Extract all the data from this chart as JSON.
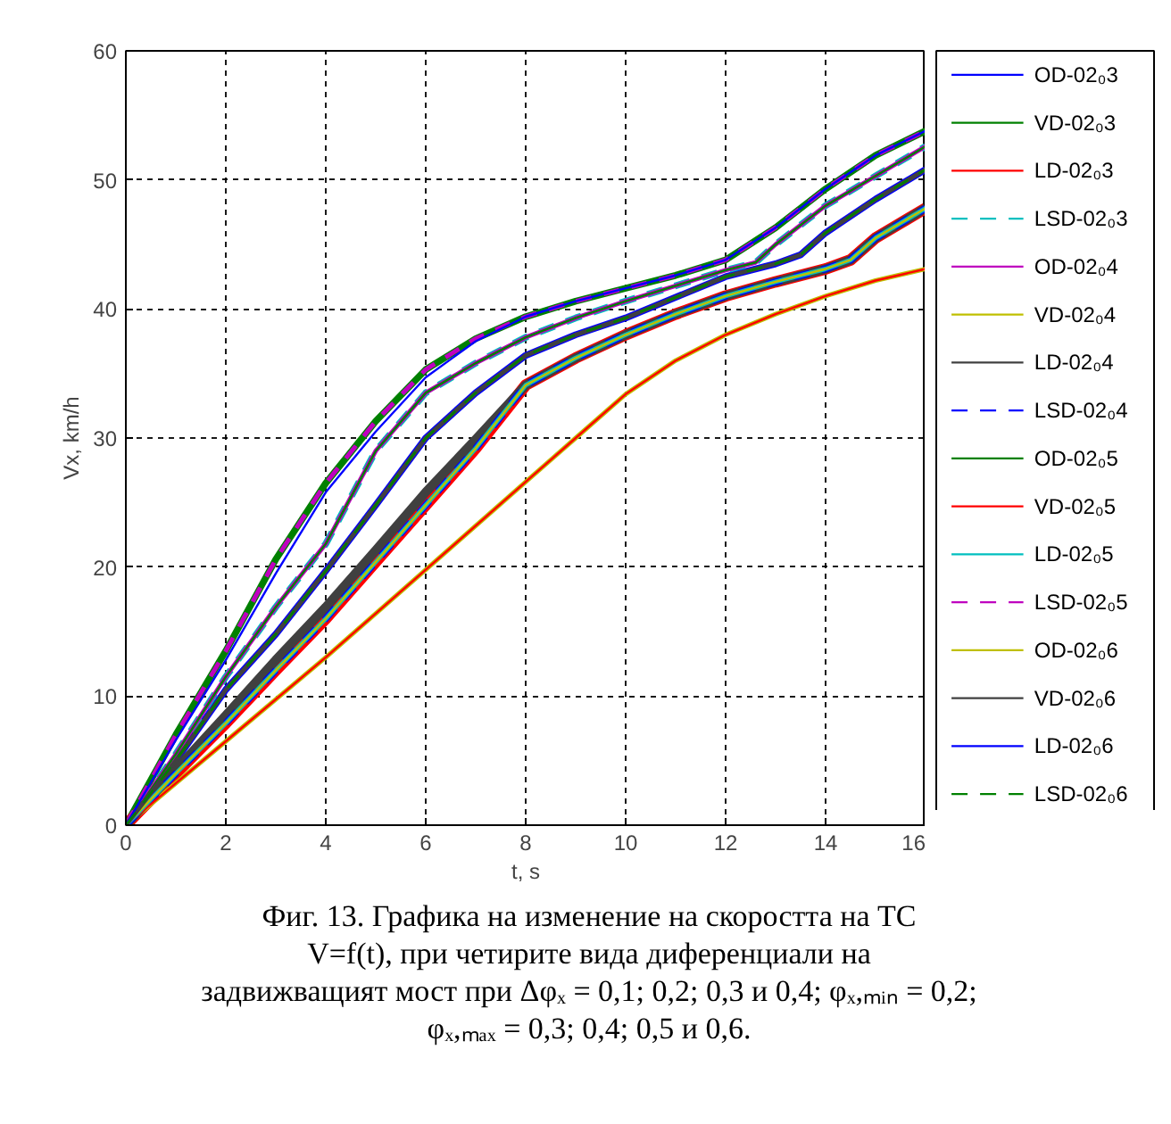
{
  "chart_data": {
    "type": "line",
    "title": "Фиг. 13. Графика на изменение на скоростта на ТС\nV=f(t), при четирите вида диференциали на\nзадвижващият мост при Δφₓ = 0,1; 0,2; 0,3 и 0,4; φₓ,ₘᵢₙ = 0,2;\nφₓ,ₘₐₓ = 0,3; 0,4; 0,5 и 0,6.",
    "xlabel": "t, s",
    "ylabel": "Vx, km/h",
    "xlim": [
      0,
      16
    ],
    "ylim": [
      0,
      60
    ],
    "xticks": [
      0,
      2,
      4,
      6,
      8,
      10,
      12,
      14,
      16
    ],
    "yticks": [
      0,
      10,
      20,
      30,
      40,
      50,
      60
    ],
    "grid": true,
    "legend": "right",
    "series": [
      {
        "name": "OD-02₀3",
        "color": "#0000ff",
        "line_style": "solid",
        "x": [
          0,
          1,
          2,
          3,
          4,
          5,
          6,
          7,
          8,
          9,
          10,
          11,
          12,
          13,
          13.5,
          14,
          15,
          16
        ],
        "values": [
          0,
          5,
          10.5,
          14.8,
          19.7,
          24.8,
          30,
          33.5,
          36.4,
          38,
          39.3,
          40.9,
          42.5,
          43.5,
          44.2,
          45.9,
          48.5,
          50.8
        ]
      },
      {
        "name": "VD-02₀3",
        "color": "#008000",
        "line_style": "solid",
        "x": [
          0,
          1,
          2,
          3,
          4,
          5,
          6,
          7,
          8,
          9,
          10,
          11,
          12,
          13,
          14,
          15,
          16
        ],
        "values": [
          0,
          7,
          13.5,
          20.6,
          26.5,
          31.3,
          35.3,
          37.7,
          39.4,
          40.6,
          41.6,
          42.6,
          43.8,
          46.3,
          49.3,
          51.9,
          53.8
        ]
      },
      {
        "name": "LD-02₀3",
        "color": "#ff0000",
        "line_style": "solid",
        "x": [
          0,
          1,
          2,
          3,
          4,
          5,
          6,
          7,
          8,
          9,
          10,
          11,
          12,
          13,
          14,
          14.5,
          15,
          16
        ],
        "values": [
          0,
          4,
          7.9,
          12,
          16,
          20.4,
          24.8,
          29.2,
          34.1,
          36.2,
          38,
          39.6,
          41,
          42.1,
          43.1,
          43.8,
          45.5,
          47.8
        ]
      },
      {
        "name": "LSD-02₀3",
        "color": "#00bfbf",
        "line_style": "dashed",
        "x": [
          0,
          1,
          2,
          3,
          4,
          5,
          6,
          7,
          8,
          9,
          10,
          11,
          12,
          12.6,
          13,
          14,
          15,
          16
        ],
        "values": [
          0,
          5.5,
          11.5,
          16.9,
          21.8,
          29,
          33.5,
          35.8,
          37.8,
          39.3,
          40.6,
          41.8,
          43,
          43.6,
          45,
          48,
          50.3,
          52.6
        ]
      },
      {
        "name": "OD-02₀4",
        "color": "#bf00bf",
        "line_style": "solid",
        "x": [
          0,
          1,
          2,
          3,
          4,
          5,
          6,
          7,
          8,
          9,
          10,
          11,
          12,
          12.6,
          13,
          14,
          15,
          16
        ],
        "values": [
          0,
          5.5,
          11.5,
          16.9,
          21.8,
          29,
          33.5,
          35.8,
          37.8,
          39.3,
          40.6,
          41.8,
          43,
          43.6,
          45,
          48,
          50.3,
          52.6
        ]
      },
      {
        "name": "VD-02₀4",
        "color": "#bfbf00",
        "line_style": "solid",
        "x": [
          0,
          2,
          4,
          6,
          8,
          9,
          10,
          11,
          12,
          13,
          14,
          15,
          16
        ],
        "values": [
          0,
          6.5,
          13,
          19.8,
          26.6,
          30,
          33.4,
          36,
          38,
          39.6,
          41,
          42.2,
          43.1
        ]
      },
      {
        "name": "LD-02₀4",
        "color": "#404040",
        "line_style": "solid",
        "x": [
          0,
          1,
          2,
          3,
          4,
          5,
          6,
          7,
          8,
          9,
          10,
          11,
          12,
          13,
          14,
          14.5,
          15,
          16
        ],
        "values": [
          0,
          4.3,
          8.5,
          12.8,
          16.9,
          21.3,
          25.8,
          29.9,
          34.1,
          36.2,
          38,
          39.6,
          41,
          42.1,
          43.1,
          43.8,
          45.5,
          47.8
        ]
      },
      {
        "name": "LSD-02₀4",
        "color": "#0000ff",
        "line_style": "dashed",
        "x": [
          0,
          1,
          2,
          3,
          4,
          5,
          6,
          7,
          8,
          9,
          10,
          11,
          12,
          13,
          14,
          14.5,
          15,
          16
        ],
        "values": [
          0,
          4,
          7.9,
          12,
          16,
          20.4,
          24.8,
          29.2,
          34.1,
          36.2,
          38,
          39.6,
          41,
          42.1,
          43.1,
          43.8,
          45.5,
          47.8
        ]
      },
      {
        "name": "OD-02₀5",
        "color": "#008000",
        "line_style": "solid",
        "x": [
          0,
          1,
          2,
          3,
          4,
          5,
          6,
          7,
          8,
          9,
          10,
          11,
          12,
          12.6,
          13,
          14,
          15,
          16
        ],
        "values": [
          0,
          5.5,
          11.5,
          16.9,
          21.8,
          29,
          33.5,
          35.8,
          37.8,
          39.3,
          40.6,
          41.8,
          43,
          43.6,
          45,
          48,
          50.3,
          52.6
        ]
      },
      {
        "name": "VD-02₀5",
        "color": "#ff0000",
        "line_style": "solid",
        "x": [
          0,
          2,
          4,
          6,
          8,
          9,
          10,
          11,
          12,
          13,
          14,
          15,
          16
        ],
        "values": [
          0,
          6.5,
          13,
          19.8,
          26.6,
          30,
          33.4,
          36,
          38,
          39.6,
          41,
          42.2,
          43.1
        ]
      },
      {
        "name": "LD-02₀5",
        "color": "#00bfbf",
        "line_style": "solid",
        "x": [
          0,
          1,
          2,
          3,
          4,
          5,
          6,
          7,
          8,
          9,
          10,
          11,
          12,
          13,
          14,
          14.5,
          15,
          16
        ],
        "values": [
          0,
          4,
          7.9,
          12,
          16,
          20.4,
          24.8,
          29.2,
          34.1,
          36.2,
          38,
          39.6,
          41,
          42.1,
          43.1,
          43.8,
          45.5,
          47.8
        ]
      },
      {
        "name": "LSD-02₀5",
        "color": "#bf00bf",
        "line_style": "dashed",
        "x": [
          0,
          1,
          2,
          3,
          4,
          5,
          6,
          7,
          8,
          9,
          10,
          11,
          12,
          13,
          14,
          15,
          16
        ],
        "values": [
          0,
          7,
          13.5,
          20.6,
          26.5,
          31.3,
          35.3,
          37.7,
          39.4,
          40.6,
          41.6,
          42.6,
          43.8,
          46.3,
          49.3,
          51.9,
          53.8
        ]
      },
      {
        "name": "OD-02₀6",
        "color": "#bfbf00",
        "line_style": "solid",
        "x": [
          0,
          1,
          2,
          3,
          4,
          5,
          6,
          7,
          8,
          9,
          10,
          11,
          12,
          13,
          14,
          14.5,
          15,
          16
        ],
        "values": [
          0,
          4,
          7.9,
          12,
          16,
          20.4,
          24.8,
          29.2,
          34.1,
          36.2,
          38,
          39.6,
          41,
          42.1,
          43.1,
          43.8,
          45.5,
          47.8
        ]
      },
      {
        "name": "VD-02₀6",
        "color": "#404040",
        "line_style": "solid",
        "x": [
          0,
          1,
          2,
          3,
          4,
          5,
          6,
          7,
          8,
          9,
          10,
          11,
          12,
          13,
          13.5,
          14,
          15,
          16
        ],
        "values": [
          0,
          5,
          10.5,
          14.8,
          19.7,
          24.8,
          30,
          33.5,
          36.4,
          38,
          39.3,
          40.9,
          42.5,
          43.5,
          44.2,
          45.9,
          48.5,
          50.8
        ]
      },
      {
        "name": "LD-02₀6",
        "color": "#0000ff",
        "line_style": "solid",
        "x": [
          0,
          1,
          2,
          3,
          4,
          5,
          6,
          7,
          8,
          9,
          10,
          11,
          12,
          13,
          14,
          15,
          16
        ],
        "values": [
          0,
          6.6,
          12.8,
          19.5,
          25.8,
          30.5,
          34.7,
          37.5,
          39.4,
          40.6,
          41.6,
          42.6,
          43.8,
          46.3,
          49.3,
          51.9,
          53.8
        ]
      },
      {
        "name": "LSD-02₀6",
        "color": "#008000",
        "line_style": "dashed",
        "x": [
          0,
          1,
          2,
          3,
          4,
          5,
          6,
          7,
          8,
          9,
          10,
          11,
          12,
          13,
          13.5,
          14,
          15,
          16
        ],
        "values": [
          0,
          5,
          10.5,
          14.8,
          19.7,
          24.8,
          30,
          33.5,
          36.4,
          38,
          39.3,
          40.9,
          42.5,
          43.5,
          44.2,
          45.9,
          48.5,
          50.8
        ]
      }
    ]
  }
}
